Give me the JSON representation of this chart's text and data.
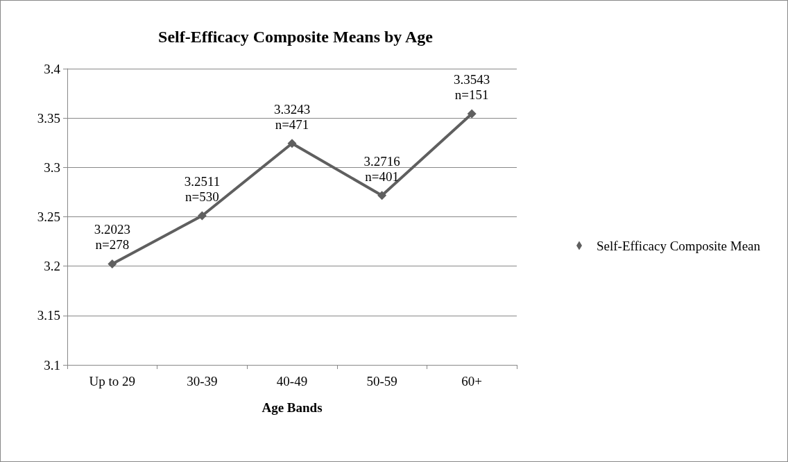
{
  "chart_data": {
    "type": "line",
    "title": "Self-Efficacy Composite Means by Age",
    "xlabel": "Age Bands",
    "categories": [
      "Up to 29",
      "30-39",
      "40-49",
      "50-59",
      "60+"
    ],
    "series": [
      {
        "name": "Self-Efficacy Composite Mean",
        "color": "#5f5f5f",
        "values": [
          3.2023,
          3.2511,
          3.3243,
          3.2716,
          3.3543
        ],
        "value_labels": [
          "3.2023\nn=278",
          "3.2511\nn=530",
          "3.3243\nn=471",
          "3.2716\nn=401",
          "3.3543\nn=151"
        ]
      }
    ],
    "ylim": [
      3.1,
      3.4
    ],
    "yticks": [
      3.1,
      3.15,
      3.2,
      3.25,
      3.3,
      3.35,
      3.4
    ],
    "grid": "y",
    "legend": "right",
    "marker": "diamond",
    "line_style": "solid"
  }
}
